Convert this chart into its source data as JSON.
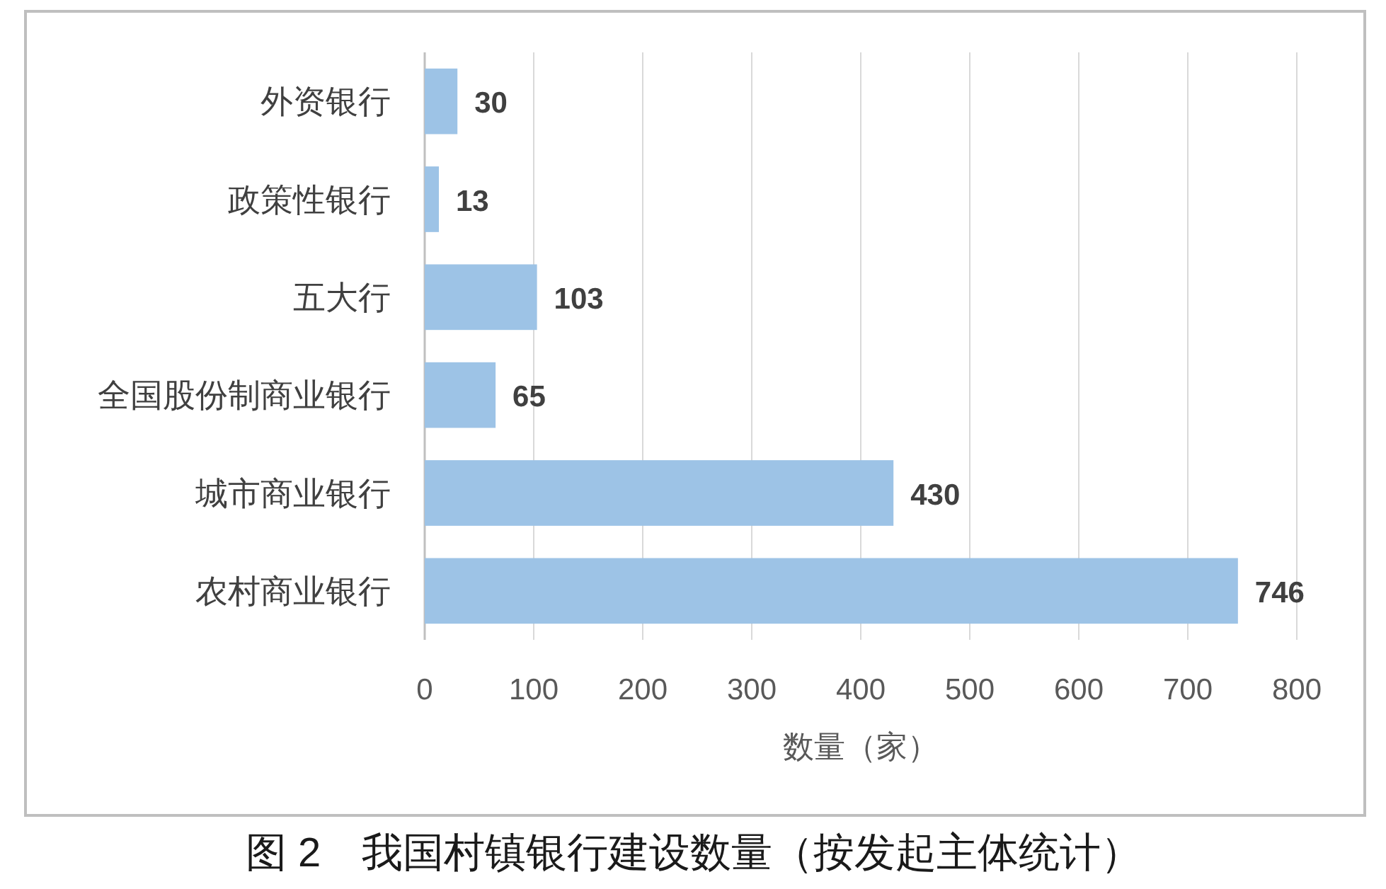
{
  "chart_data": {
    "type": "bar",
    "orientation": "horizontal",
    "title": "图 2　我国村镇银行建设数量（按发起主体统计）",
    "xlabel": "数量（家）",
    "categories": [
      "外资银行",
      "政策性银行",
      "五大行",
      "全国股份制商业银行",
      "城市商业银行",
      "农村商业银行"
    ],
    "values": [
      30,
      13,
      103,
      65,
      430,
      746
    ],
    "color": "#9dc3e6",
    "xlim": [
      0,
      800
    ],
    "xticks": [
      0,
      100,
      200,
      300,
      400,
      500,
      600,
      700,
      800
    ],
    "grid": "x",
    "data_labels": true
  }
}
